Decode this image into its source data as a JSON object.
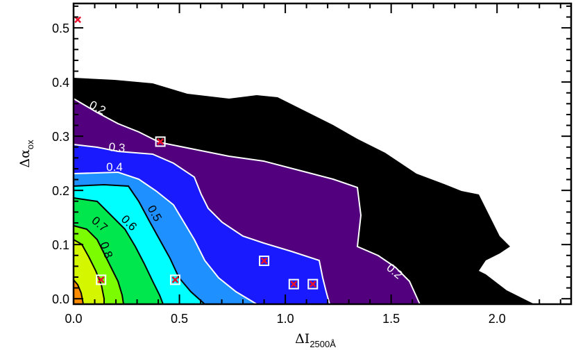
{
  "chart_data": {
    "type": "contour",
    "xlabel": "ΔI",
    "xlabel_sub": "2500Å",
    "ylabel": "Δα",
    "ylabel_sub": "ox",
    "xlim": [
      0.0,
      2.35
    ],
    "ylim": [
      -0.01,
      0.545
    ],
    "x_ticks": [
      "0.0",
      "0.5",
      "1.0",
      "1.5",
      "2.0"
    ],
    "y_ticks": [
      "0.0",
      "0.1",
      "0.2",
      "0.3",
      "0.4",
      "0.5"
    ],
    "contour_levels": [
      0.2,
      0.3,
      0.4,
      0.5,
      0.6,
      0.7,
      0.8
    ],
    "level_colors": {
      "0.2": "#000000",
      "0.3": "#52007e",
      "0.4": "#1a1aff",
      "0.5": "#1e90ff",
      "0.6": "#00ffff",
      "0.7": "#00e64d",
      "0.8": "#7cfc00",
      "0.9": "#d4f700",
      "1.0": "#ff8c00"
    },
    "contour_labels": [
      {
        "text": "0.2",
        "color": "#ffffff"
      },
      {
        "text": "0.3",
        "color": "#ffffff"
      },
      {
        "text": "0.4",
        "color": "#ffffff"
      },
      {
        "text": "0.5",
        "color": "#000000"
      },
      {
        "text": "0.6",
        "color": "#000000"
      },
      {
        "text": "0.7",
        "color": "#000000"
      },
      {
        "text": "0.8",
        "color": "#000000"
      },
      {
        "text": "0.2",
        "color": "#ffffff"
      }
    ],
    "cross_points": [
      {
        "x": 0.02,
        "y": 0.515
      },
      {
        "x": 0.13,
        "y": 0.035
      },
      {
        "x": 0.48,
        "y": 0.035
      },
      {
        "x": 0.41,
        "y": 0.29
      },
      {
        "x": 0.9,
        "y": 0.07
      },
      {
        "x": 1.04,
        "y": 0.027
      },
      {
        "x": 1.13,
        "y": 0.027
      }
    ],
    "boxed_points": [
      {
        "x": 0.13,
        "y": 0.035
      },
      {
        "x": 0.48,
        "y": 0.035
      },
      {
        "x": 0.41,
        "y": 0.29
      },
      {
        "x": 0.9,
        "y": 0.07
      },
      {
        "x": 1.04,
        "y": 0.027
      },
      {
        "x": 1.13,
        "y": 0.027
      }
    ],
    "marker_color": "#e8102a"
  }
}
